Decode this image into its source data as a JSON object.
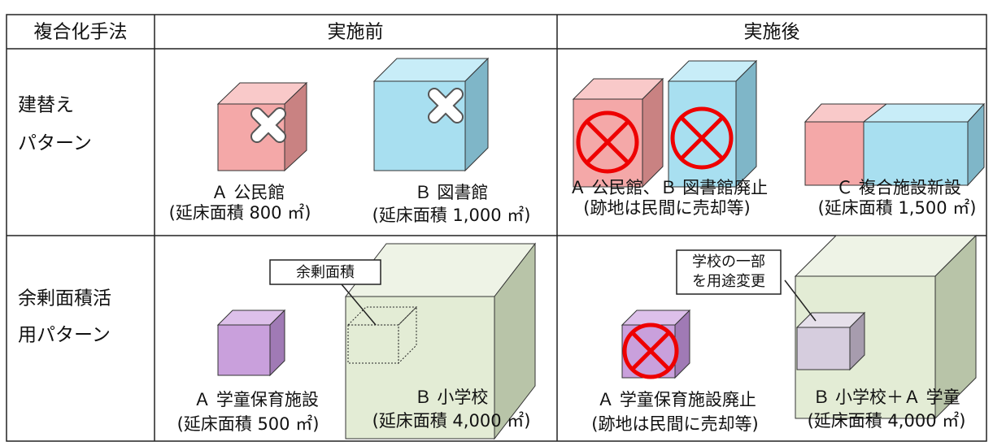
{
  "table": {
    "headers": [
      "複合化手法",
      "実施前",
      "実施後"
    ],
    "rows": [
      {
        "method": [
          "建替え",
          "パターン"
        ],
        "before": [
          {
            "name": "Ａ 公民館",
            "area": "(延床面積 800 ㎡)"
          },
          {
            "name": "Ｂ 図書館",
            "area": "(延床面積 1,000 ㎡)"
          }
        ],
        "after": [
          {
            "name": "Ａ 公民館、Ｂ 図書館廃止",
            "area": "(跡地は民間に売却等)"
          },
          {
            "name": "Ｃ 複合施設新設",
            "area": "(延床面積 1,500 ㎡)"
          }
        ]
      },
      {
        "method": [
          "余剰面積活",
          "用パターン"
        ],
        "before_callout": [
          "余剰面積"
        ],
        "before": [
          {
            "name": "Ａ 学童保育施設",
            "area": "(延床面積 500 ㎡)"
          },
          {
            "name": "Ｂ 小学校",
            "area": "(延床面積 4,000 ㎡)"
          }
        ],
        "after_callout": [
          "学校の一部",
          "を用途変更"
        ],
        "after": [
          {
            "name": "Ａ 学童保育施設廃止",
            "area": "(跡地は民間に売却等)"
          },
          {
            "name": "Ｂ 小学校＋Ａ 学童",
            "area": "(延床面積 4,000 ㎡)"
          }
        ]
      }
    ]
  }
}
